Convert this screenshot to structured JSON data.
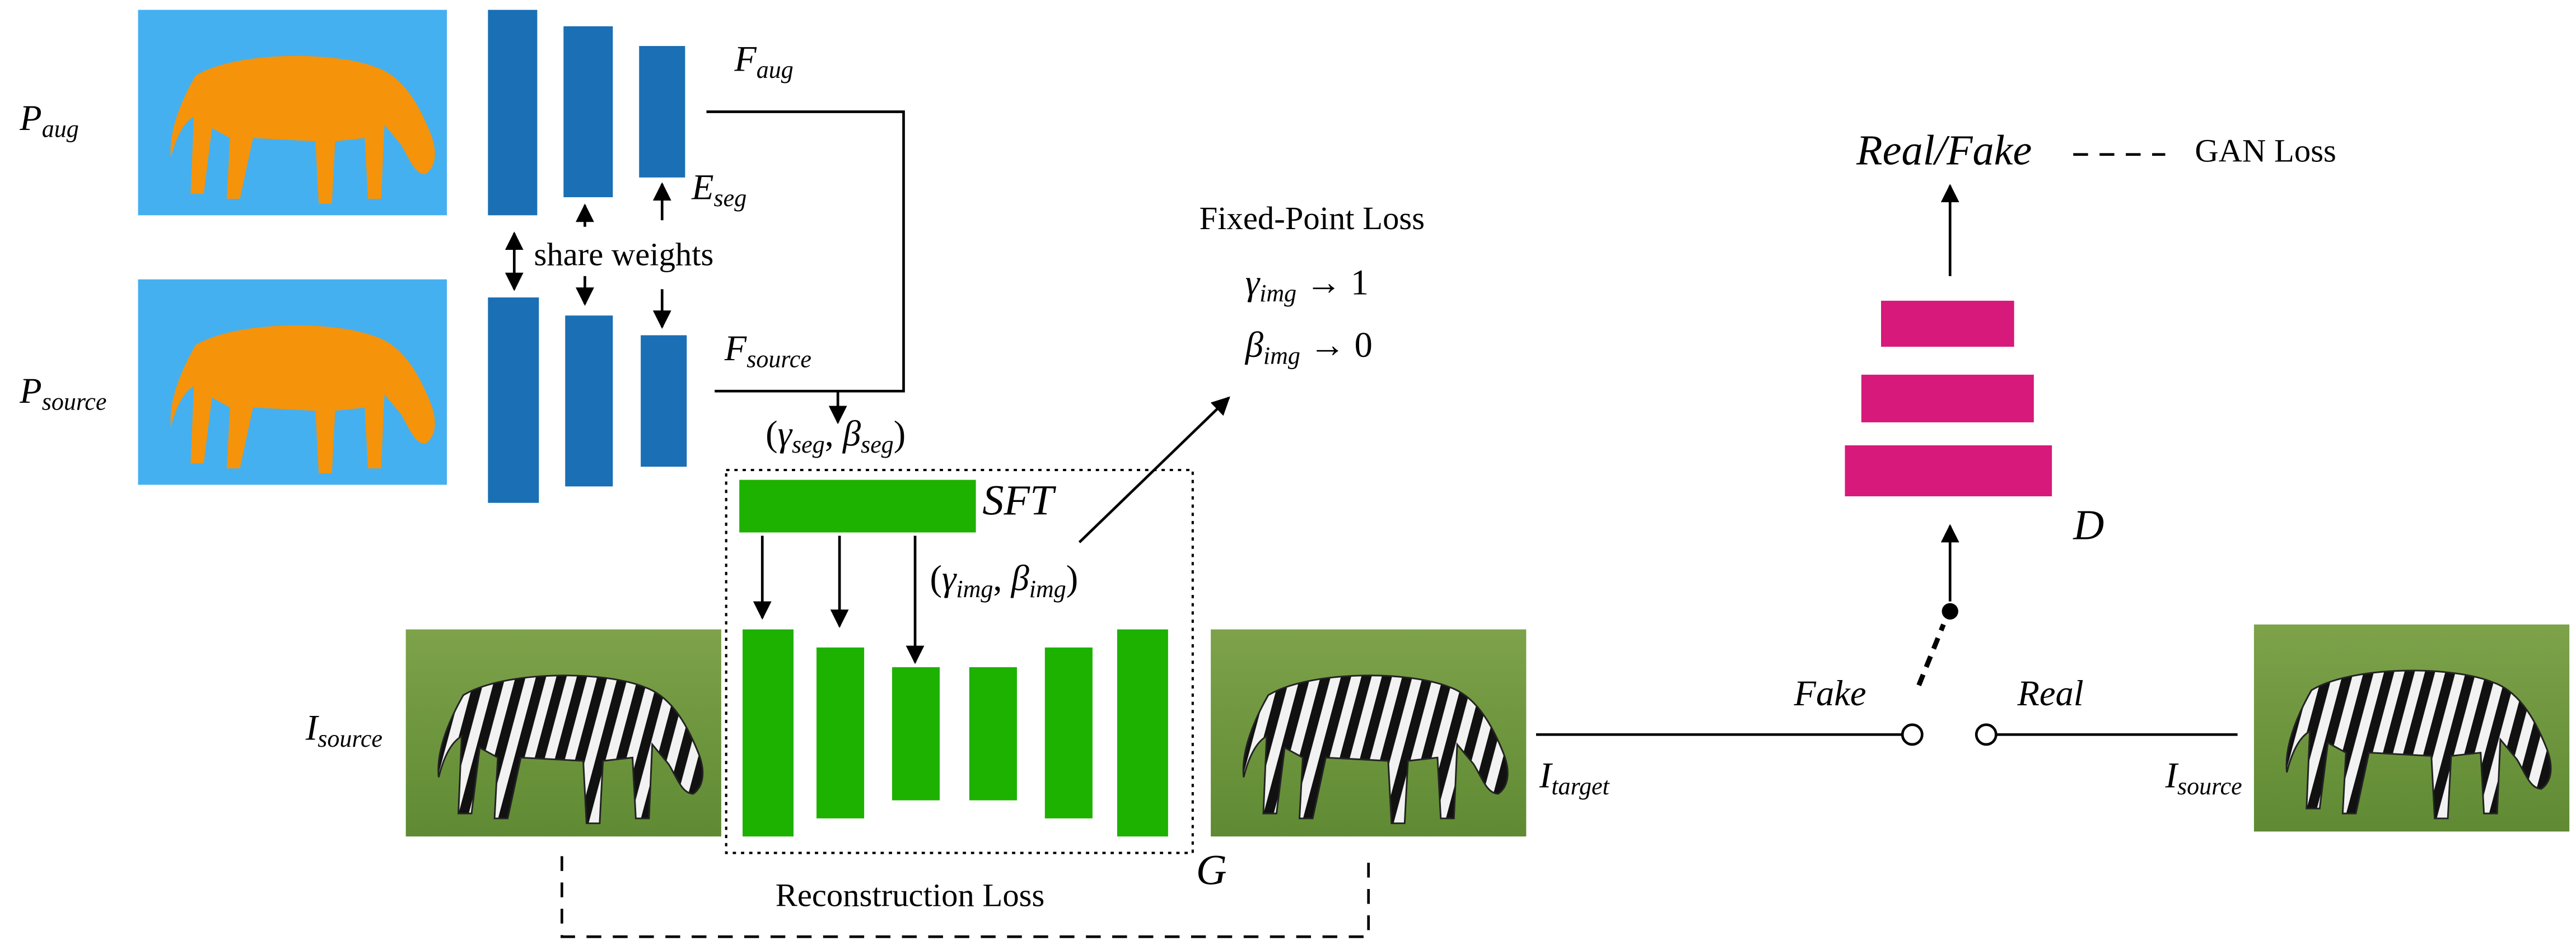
{
  "labels": {
    "p_aug": [
      {
        "text": "P"
      },
      {
        "text": "aug",
        "sub": true
      }
    ],
    "p_source": [
      {
        "text": "P"
      },
      {
        "text": "source",
        "sub": true
      }
    ],
    "f_aug": [
      {
        "text": "F"
      },
      {
        "text": "aug",
        "sub": true
      }
    ],
    "e_seg": [
      {
        "text": "E"
      },
      {
        "text": "seg",
        "sub": true
      }
    ],
    "share_weights": [
      {
        "text": "share weights"
      }
    ],
    "f_source": [
      {
        "text": "F"
      },
      {
        "text": "source",
        "sub": true
      }
    ],
    "gamma_beta_seg": [
      {
        "text": "(",
        "upright": true
      },
      {
        "text": "γ"
      },
      {
        "text": "seg",
        "sub": true
      },
      {
        "text": ", ",
        "upright": true
      },
      {
        "text": "β"
      },
      {
        "text": "seg",
        "sub": true
      },
      {
        "text": ")",
        "upright": true
      }
    ],
    "sft": [
      {
        "text": "SFT"
      }
    ],
    "gamma_beta_img": [
      {
        "text": "(",
        "upright": true
      },
      {
        "text": "γ"
      },
      {
        "text": "img",
        "sub": true
      },
      {
        "text": ", ",
        "upright": true
      },
      {
        "text": "β"
      },
      {
        "text": "img",
        "sub": true
      },
      {
        "text": ")",
        "upright": true
      }
    ],
    "fixed_point_loss": [
      {
        "text": "Fixed-Point Loss"
      }
    ],
    "gamma_to_1": [
      {
        "text": "γ"
      },
      {
        "text": "img",
        "sub": true
      },
      {
        "text": " → 1",
        "upright": true
      }
    ],
    "beta_to_0": [
      {
        "text": "β"
      },
      {
        "text": "img",
        "sub": true
      },
      {
        "text": " → 0",
        "upright": true
      }
    ],
    "real_fake": [
      {
        "text": "Real/Fake"
      }
    ],
    "gan_loss": [
      {
        "text": "GAN Loss"
      }
    ],
    "d": [
      {
        "text": "D"
      }
    ],
    "fake": [
      {
        "text": "Fake"
      }
    ],
    "real": [
      {
        "text": "Real"
      }
    ],
    "i_source_left": [
      {
        "text": "I"
      },
      {
        "text": "source",
        "sub": true
      }
    ],
    "i_target": [
      {
        "text": "I"
      },
      {
        "text": "target",
        "sub": true
      }
    ],
    "i_source_right": [
      {
        "text": "I"
      },
      {
        "text": "source",
        "sub": true
      }
    ],
    "g": [
      {
        "text": "G"
      }
    ],
    "reconstruction_loss": [
      {
        "text": "Reconstruction Loss"
      }
    ]
  }
}
